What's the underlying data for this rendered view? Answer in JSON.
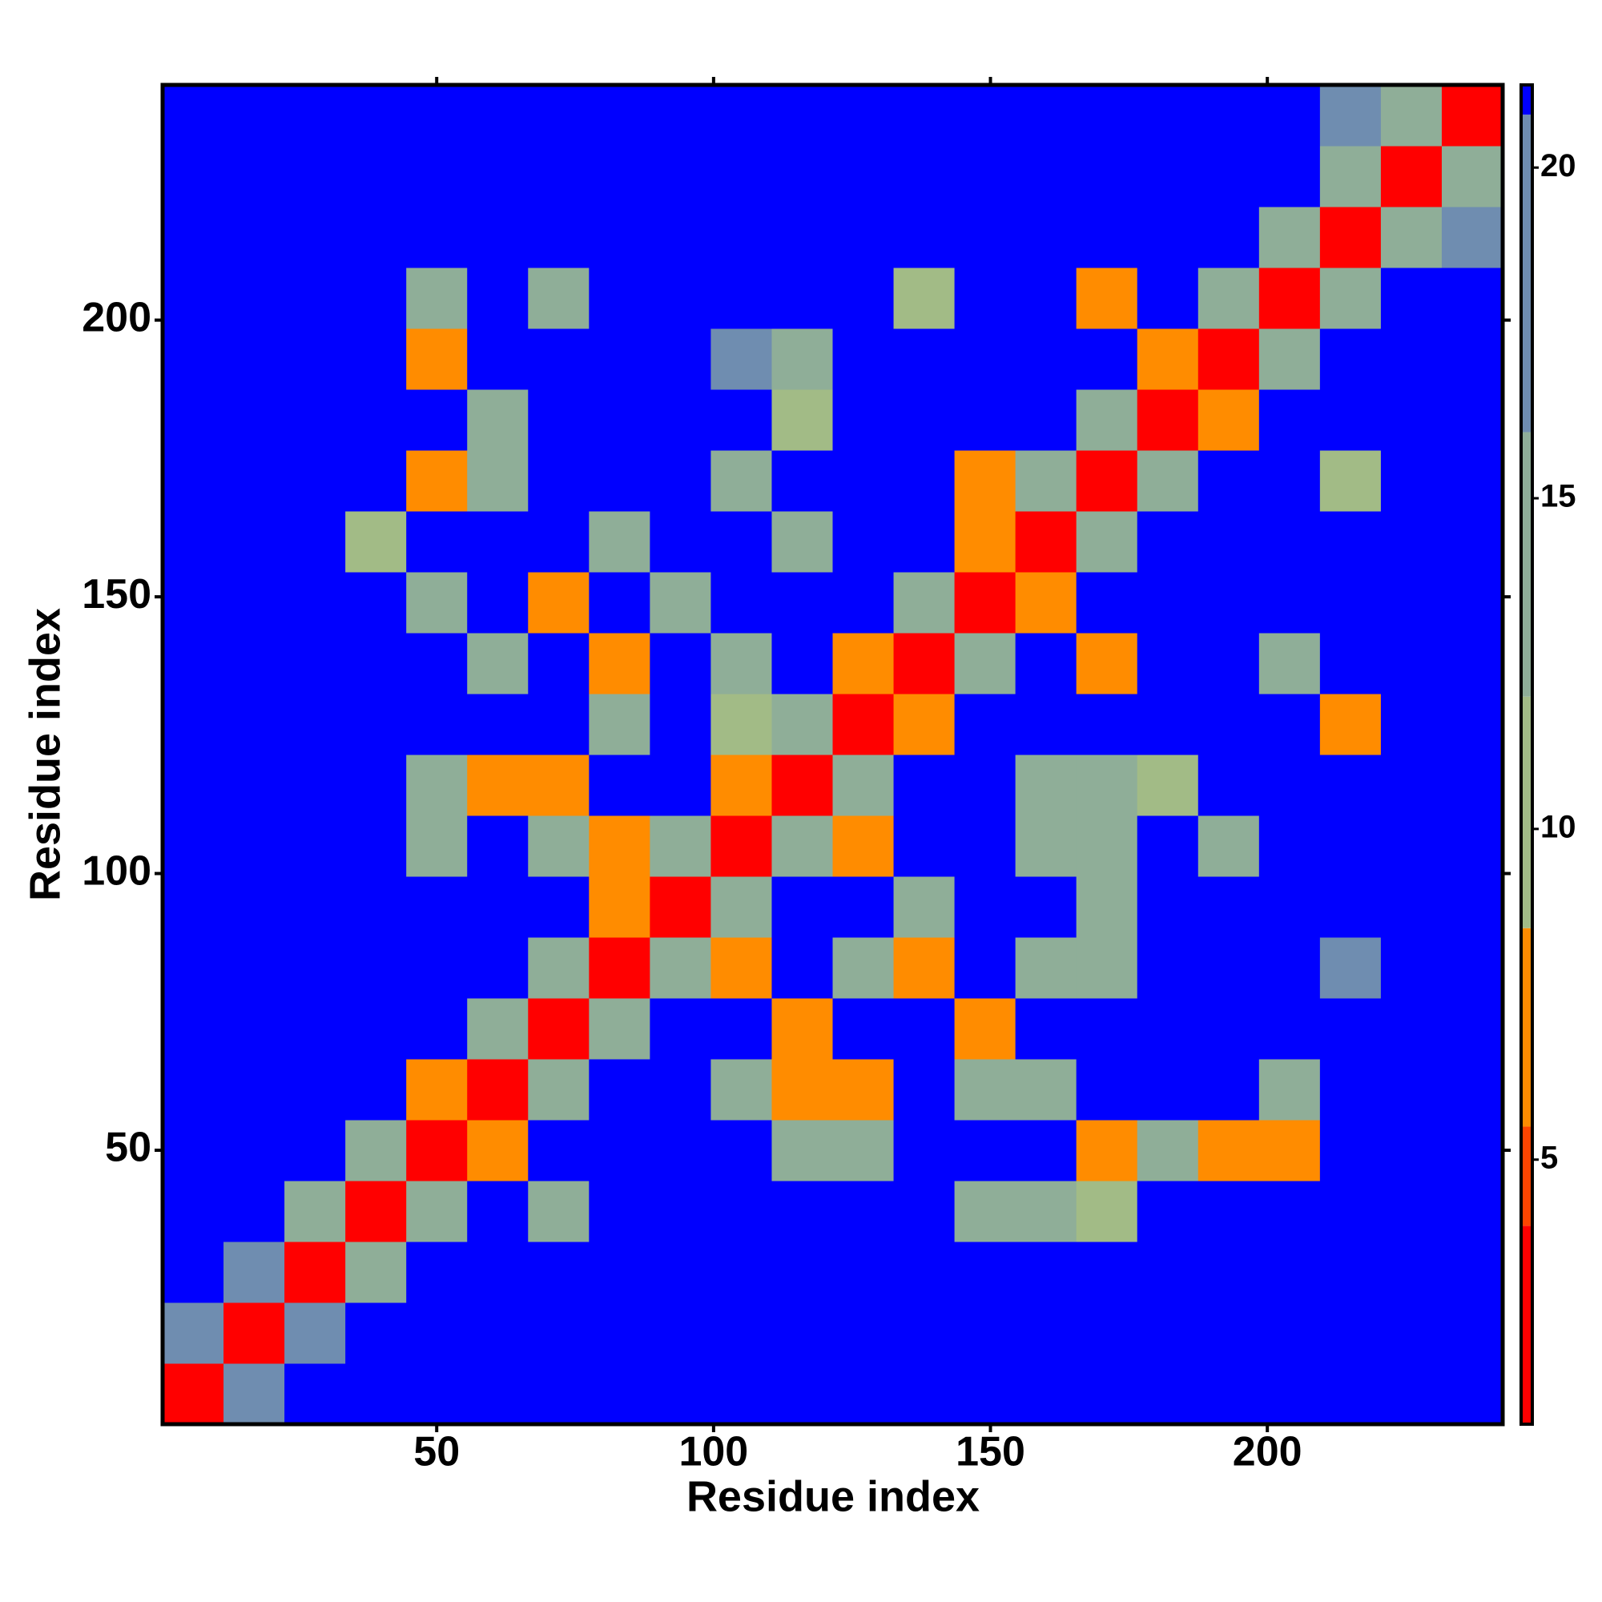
{
  "chart_data": {
    "type": "heatmap",
    "x_label": "Residue index",
    "y_label": "Residue index",
    "x": [
      6,
      17,
      28,
      39,
      50,
      61,
      72,
      83,
      94,
      105,
      116,
      127,
      138,
      149,
      160,
      171,
      182,
      193,
      204,
      215,
      226,
      237
    ],
    "y": [
      6,
      17,
      28,
      39,
      50,
      61,
      72,
      83,
      94,
      105,
      116,
      127,
      138,
      149,
      160,
      171,
      182,
      193,
      204,
      215,
      226,
      237
    ],
    "z": [
      [
        2,
        18,
        21,
        21,
        21,
        21,
        21,
        21,
        21,
        21,
        21,
        21,
        21,
        21,
        21,
        21,
        21,
        21,
        21,
        21,
        21,
        21
      ],
      [
        18,
        2,
        18,
        21,
        21,
        21,
        21,
        21,
        21,
        21,
        21,
        21,
        21,
        21,
        21,
        21,
        21,
        21,
        21,
        21,
        21,
        21
      ],
      [
        21,
        18,
        2,
        15,
        21,
        21,
        21,
        21,
        21,
        21,
        21,
        21,
        21,
        21,
        21,
        21,
        21,
        21,
        21,
        21,
        21,
        21
      ],
      [
        21,
        21,
        15,
        2,
        12,
        21,
        12,
        21,
        21,
        21,
        21,
        21,
        21,
        13,
        13,
        9,
        21,
        21,
        21,
        21,
        21,
        21
      ],
      [
        21,
        21,
        21,
        12,
        2,
        7,
        21,
        21,
        21,
        21,
        13,
        14,
        21,
        21,
        21,
        8,
        13,
        7,
        8,
        21,
        21,
        21
      ],
      [
        21,
        21,
        21,
        21,
        7,
        2,
        14,
        21,
        21,
        12,
        7,
        8,
        21,
        12,
        13,
        21,
        21,
        21,
        13,
        21,
        21,
        21
      ],
      [
        21,
        21,
        21,
        21,
        21,
        14,
        2,
        14,
        21,
        21,
        7,
        21,
        21,
        7,
        21,
        21,
        21,
        21,
        21,
        21,
        21,
        21
      ],
      [
        21,
        21,
        21,
        21,
        21,
        21,
        14,
        2,
        14,
        7,
        21,
        13,
        6,
        21,
        12,
        12,
        21,
        21,
        21,
        18,
        21,
        21
      ],
      [
        21,
        21,
        21,
        21,
        21,
        21,
        21,
        8,
        2,
        14,
        21,
        21,
        12,
        21,
        21,
        13,
        21,
        21,
        21,
        21,
        21,
        21
      ],
      [
        21,
        21,
        21,
        21,
        13,
        21,
        12,
        8,
        14,
        2,
        14,
        7,
        21,
        21,
        13,
        14,
        21,
        14,
        21,
        21,
        21,
        21
      ],
      [
        21,
        21,
        21,
        21,
        13,
        7,
        8,
        21,
        21,
        7,
        2,
        14,
        21,
        21,
        12,
        13,
        9,
        21,
        21,
        21,
        21,
        21
      ],
      [
        21,
        21,
        21,
        21,
        21,
        21,
        21,
        12,
        21,
        9,
        14,
        2,
        8,
        21,
        21,
        21,
        21,
        21,
        21,
        8,
        21,
        21
      ],
      [
        21,
        21,
        21,
        21,
        21,
        13,
        21,
        7,
        21,
        15,
        21,
        8,
        2,
        14,
        21,
        7,
        21,
        21,
        14,
        21,
        21,
        21
      ],
      [
        21,
        21,
        21,
        21,
        12,
        21,
        6,
        21,
        13,
        21,
        21,
        21,
        14,
        2,
        6,
        21,
        21,
        21,
        21,
        21,
        21,
        21
      ],
      [
        21,
        21,
        21,
        9,
        21,
        21,
        21,
        12,
        21,
        21,
        14,
        21,
        21,
        6,
        2,
        14,
        21,
        21,
        21,
        21,
        21,
        21
      ],
      [
        21,
        21,
        21,
        21,
        6,
        12,
        21,
        21,
        21,
        14,
        21,
        21,
        21,
        7,
        14,
        2,
        14,
        21,
        21,
        9,
        21,
        21
      ],
      [
        21,
        21,
        21,
        21,
        21,
        13,
        21,
        21,
        21,
        21,
        11,
        21,
        21,
        21,
        21,
        14,
        2,
        6,
        21,
        21,
        21,
        21
      ],
      [
        21,
        21,
        21,
        21,
        8,
        21,
        21,
        21,
        21,
        18,
        13,
        21,
        21,
        21,
        21,
        21,
        6,
        2,
        14,
        21,
        21,
        21
      ],
      [
        21,
        21,
        21,
        21,
        14,
        21,
        13,
        21,
        21,
        21,
        21,
        21,
        10,
        21,
        21,
        7,
        21,
        14,
        2,
        12,
        21,
        21
      ],
      [
        21,
        21,
        21,
        21,
        21,
        21,
        21,
        21,
        21,
        21,
        21,
        21,
        21,
        21,
        21,
        21,
        21,
        21,
        12,
        2,
        12,
        16
      ],
      [
        21,
        21,
        21,
        21,
        21,
        21,
        21,
        21,
        21,
        21,
        21,
        21,
        21,
        21,
        21,
        21,
        21,
        21,
        21,
        12,
        2,
        12
      ],
      [
        21,
        21,
        21,
        21,
        21,
        21,
        21,
        21,
        21,
        21,
        21,
        21,
        21,
        21,
        21,
        21,
        21,
        21,
        21,
        16,
        12,
        2
      ]
    ],
    "xlim": [
      0.5,
      242.5
    ],
    "ylim": [
      0.5,
      242.5
    ],
    "xticks": [
      50,
      100,
      150,
      200
    ],
    "yticks": [
      50,
      100,
      150,
      200
    ],
    "zlim": [
      1,
      21.25
    ],
    "zticks": [
      5,
      10,
      15,
      20
    ],
    "colorscale": [
      [
        1,
        "#ff0000"
      ],
      [
        4,
        "#ff4500"
      ],
      [
        5.5,
        "#ff8c00"
      ],
      [
        8.5,
        "#a2bb86"
      ],
      [
        12,
        "#8fae98"
      ],
      [
        16,
        "#6f8db0"
      ],
      [
        20.8,
        "#0000ff"
      ]
    ]
  }
}
